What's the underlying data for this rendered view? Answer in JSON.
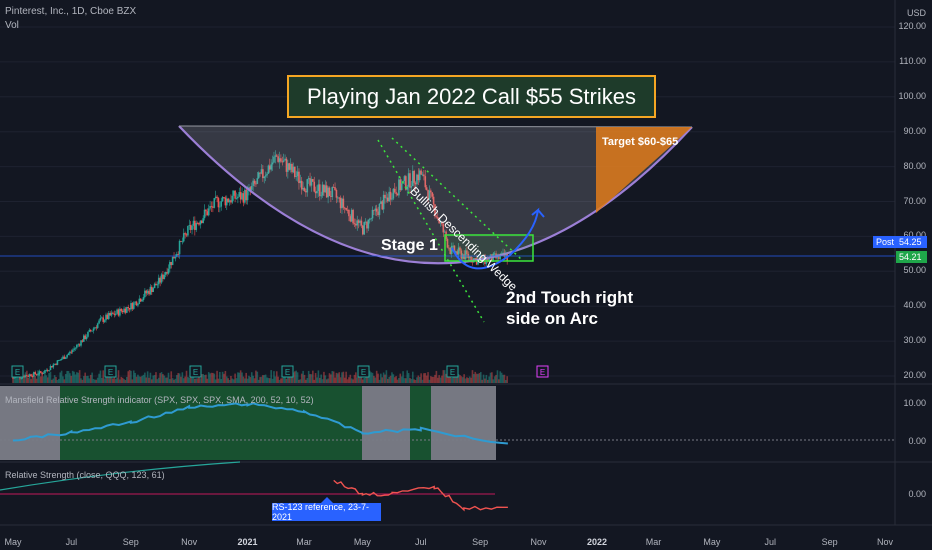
{
  "header": {
    "symbol": "Pinterest, Inc., 1D, Cboe BZX",
    "volume_label": "Vol"
  },
  "price_axis": {
    "currency": "USD",
    "ticks": [
      "120.00",
      "110.00",
      "100.00",
      "90.00",
      "80.00",
      "70.00",
      "60.00",
      "50.00",
      "40.00",
      "30.00",
      "20.00"
    ]
  },
  "price_badges": {
    "post_label": "Post",
    "post_value": "54.25",
    "last_value": "54.21"
  },
  "annotations": {
    "title": "Playing Jan 2022 Call $55 Strikes",
    "target": "Target $60-$65",
    "wedge": "Bullish Descending Wedge",
    "stage": "Stage 1",
    "touch_line1": "2nd Touch right",
    "touch_line2": "side on Arc",
    "tooltip": "RS-123 reference, 23-7-2021"
  },
  "indicators": {
    "mansfield": {
      "title": "Mansfield Relative Strength indicator (SPX, SPX, SPX, SMA, 200, 52, 10, 52)",
      "ticks": [
        "10.00",
        "0.00"
      ]
    },
    "rs": {
      "title": "Relative Strength (close, QQQ, 123, 61)",
      "ticks": [
        "0.00"
      ]
    }
  },
  "time_axis": {
    "months": [
      {
        "label": "May",
        "year": false
      },
      {
        "label": "Jul",
        "year": false
      },
      {
        "label": "Sep",
        "year": false
      },
      {
        "label": "Nov",
        "year": false
      },
      {
        "label": "2021",
        "year": true
      },
      {
        "label": "Mar",
        "year": false
      },
      {
        "label": "May",
        "year": false
      },
      {
        "label": "Jul",
        "year": false
      },
      {
        "label": "Sep",
        "year": false
      },
      {
        "label": "Nov",
        "year": false
      },
      {
        "label": "2022",
        "year": true
      },
      {
        "label": "Mar",
        "year": false
      },
      {
        "label": "May",
        "year": false
      },
      {
        "label": "Jul",
        "year": false
      },
      {
        "label": "Sep",
        "year": false
      },
      {
        "label": "Nov",
        "year": false
      }
    ]
  },
  "earnings_marker": "E",
  "colors": {
    "up": "#26a69a",
    "down": "#ef5350",
    "arc": "#9c7fd6",
    "target": "#e07b1a",
    "box": "#3ce63c",
    "mansfield_line": "#2f9bd1",
    "rs_line": "#ef5350"
  },
  "chart_data": {
    "type": "candlestick",
    "title": "Pinterest, Inc., 1D, Cboe BZX",
    "ylim": [
      20,
      120
    ],
    "y_unit": "USD",
    "x_range": [
      "2020-05",
      "2022-11"
    ],
    "series": [
      {
        "name": "close",
        "points": [
          {
            "x": "2020-05-01",
            "y": 19.5
          },
          {
            "x": "2020-06-01",
            "y": 21.0
          },
          {
            "x": "2020-07-01",
            "y": 27.0
          },
          {
            "x": "2020-08-01",
            "y": 36.0
          },
          {
            "x": "2020-09-01",
            "y": 40.0
          },
          {
            "x": "2020-10-01",
            "y": 47.0
          },
          {
            "x": "2020-11-01",
            "y": 62.0
          },
          {
            "x": "2020-12-01",
            "y": 70.0
          },
          {
            "x": "2021-01-01",
            "y": 72.0
          },
          {
            "x": "2021-02-01",
            "y": 83.0
          },
          {
            "x": "2021-03-01",
            "y": 75.0
          },
          {
            "x": "2021-04-01",
            "y": 72.0
          },
          {
            "x": "2021-05-01",
            "y": 62.0
          },
          {
            "x": "2021-06-01",
            "y": 73.0
          },
          {
            "x": "2021-07-01",
            "y": 78.0
          },
          {
            "x": "2021-08-01",
            "y": 56.0
          },
          {
            "x": "2021-09-01",
            "y": 53.0
          },
          {
            "x": "2021-09-30",
            "y": 54.21
          }
        ]
      }
    ],
    "mansfield_rs": [
      {
        "x": "2020-05-01",
        "y": 0
      },
      {
        "x": "2020-07-01",
        "y": 2
      },
      {
        "x": "2020-09-01",
        "y": 5
      },
      {
        "x": "2020-11-01",
        "y": 9
      },
      {
        "x": "2021-01-01",
        "y": 10
      },
      {
        "x": "2021-03-01",
        "y": 8
      },
      {
        "x": "2021-05-01",
        "y": 2
      },
      {
        "x": "2021-07-01",
        "y": 3
      },
      {
        "x": "2021-09-30",
        "y": -1
      }
    ],
    "rs_qqq": [
      {
        "x": "2021-04-01",
        "y": 1
      },
      {
        "x": "2021-05-01",
        "y": 0
      },
      {
        "x": "2021-06-01",
        "y": 0
      },
      {
        "x": "2021-07-15",
        "y": 0.5
      },
      {
        "x": "2021-08-15",
        "y": -1
      },
      {
        "x": "2021-09-30",
        "y": -1
      }
    ],
    "legend": "none",
    "grid": true
  }
}
